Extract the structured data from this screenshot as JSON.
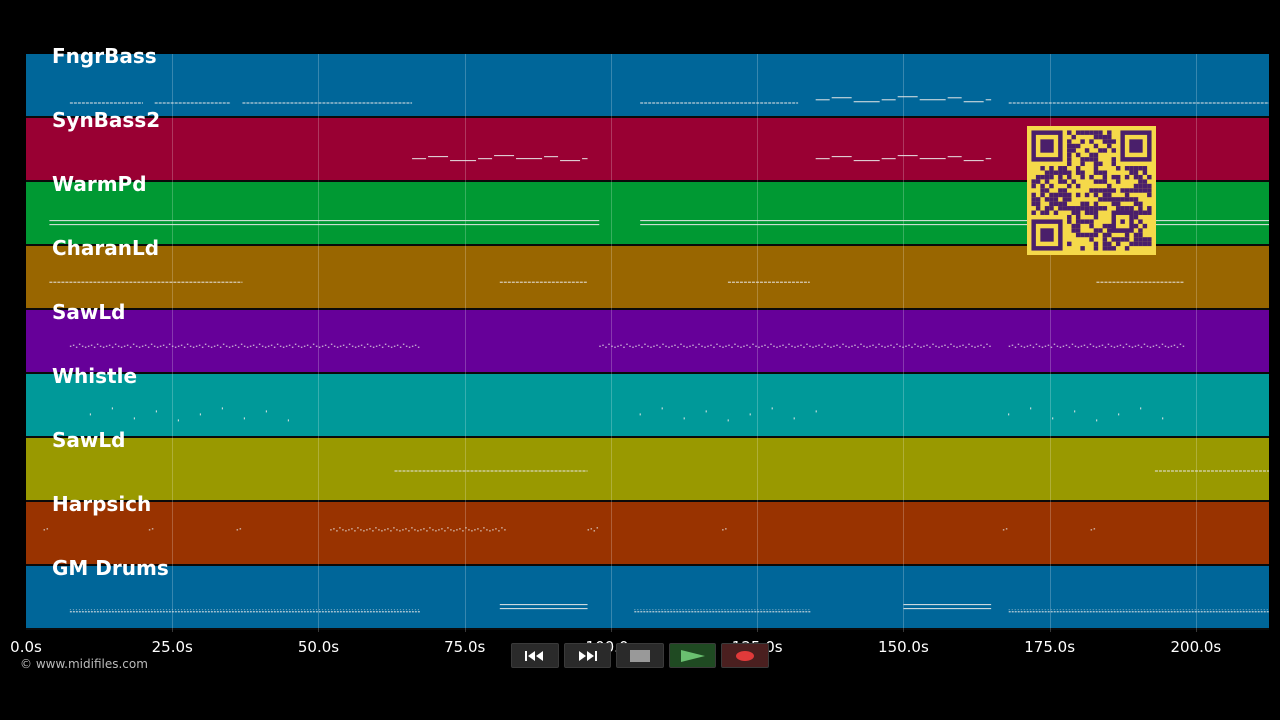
{
  "tracks": [
    {
      "name": "FngrBass",
      "color": "#006699"
    },
    {
      "name": "SynBass2",
      "color": "#990033"
    },
    {
      "name": "WarmPd",
      "color": "#009933"
    },
    {
      "name": "CharanLd",
      "color": "#996600"
    },
    {
      "name": "SawLd",
      "color": "#660099"
    },
    {
      "name": "Whistle",
      "color": "#009999"
    },
    {
      "name": "SawLd",
      "color": "#999900"
    },
    {
      "name": "Harpsich",
      "color": "#993300"
    },
    {
      "name": "GM Drums",
      "color": "#006699"
    }
  ],
  "timeline": {
    "ticks": [
      "0.0s",
      "25.0s",
      "50.0s",
      "75.0s",
      "100.0s",
      "125.0s",
      "150.0s",
      "175.0s",
      "200.0s"
    ],
    "tick_seconds": [
      0,
      25,
      50,
      75,
      100,
      125,
      150,
      175,
      200
    ],
    "duration_seconds": 212.5
  },
  "transport": {
    "rewind_icon": "rewind-icon",
    "forward_icon": "fast-forward-icon",
    "stop_icon": "stop-icon",
    "play_icon": "play-icon",
    "record_icon": "record-icon"
  },
  "copyright": "© www.midifiles.com",
  "qr_code": {
    "color": "#f5d94a",
    "module_color": "#4a1f6b"
  },
  "note_segments": [
    {
      "track": 0,
      "ranges": [
        [
          7.5,
          20
        ],
        [
          22,
          35
        ],
        [
          37,
          66
        ]
      ],
      "style": "dash",
      "y": 0.75
    },
    {
      "track": 0,
      "ranges": [
        [
          105,
          132
        ],
        [
          168,
          212.5
        ]
      ],
      "style": "dash",
      "y": 0.75
    },
    {
      "track": 0,
      "ranges": [
        [
          135,
          165
        ]
      ],
      "style": "step",
      "y": 0.7
    },
    {
      "track": 1,
      "ranges": [
        [
          66,
          96
        ],
        [
          135,
          165
        ]
      ],
      "style": "step",
      "y": 0.62
    },
    {
      "track": 2,
      "ranges": [
        [
          4,
          98
        ],
        [
          105,
          212.5
        ]
      ],
      "style": "double",
      "y": 0.62
    },
    {
      "track": 3,
      "ranges": [
        [
          4,
          37
        ],
        [
          81,
          96
        ],
        [
          120,
          134
        ],
        [
          183,
          198
        ]
      ],
      "style": "dash",
      "y": 0.55
    },
    {
      "track": 4,
      "ranges": [
        [
          7.5,
          67
        ],
        [
          98,
          165
        ],
        [
          168,
          198
        ]
      ],
      "style": "dots",
      "y": 0.55
    },
    {
      "track": 5,
      "ranges": [
        [
          11,
          48
        ],
        [
          105,
          138
        ],
        [
          168,
          198
        ]
      ],
      "style": "sparse",
      "y": 0.6
    },
    {
      "track": 6,
      "ranges": [
        [
          63,
          96
        ],
        [
          193,
          212.5
        ]
      ],
      "style": "dash",
      "y": 0.5
    },
    {
      "track": 7,
      "ranges": [
        [
          3,
          4
        ],
        [
          21,
          22
        ],
        [
          36,
          37
        ],
        [
          52,
          82
        ],
        [
          96,
          98
        ],
        [
          119,
          120
        ],
        [
          167,
          168
        ],
        [
          182,
          183
        ]
      ],
      "style": "dots",
      "y": 0.42
    },
    {
      "track": 8,
      "ranges": [
        [
          7.5,
          67
        ],
        [
          104,
          134
        ],
        [
          168,
          212.5
        ]
      ],
      "style": "drum",
      "y": 0.7
    },
    {
      "track": 8,
      "ranges": [
        [
          81,
          96
        ],
        [
          150,
          165
        ]
      ],
      "style": "double",
      "y": 0.62
    }
  ]
}
